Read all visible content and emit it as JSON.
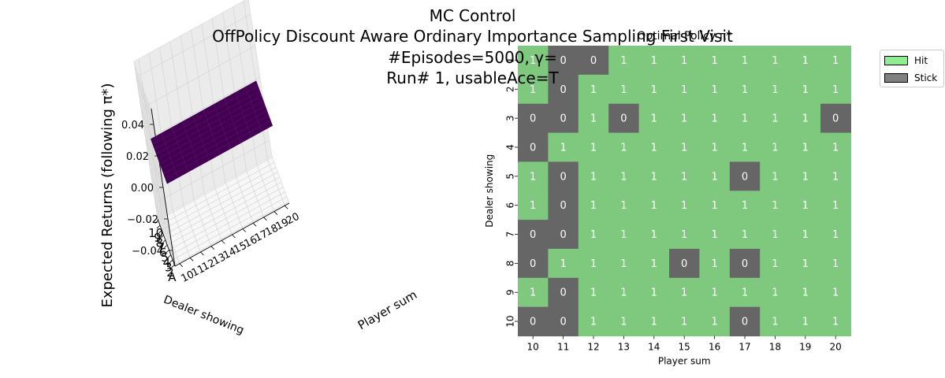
{
  "suptitle": {
    "line1": "MC Control",
    "line2": "OffPolicy Discount Aware Ordinary Importance Sampling First Visit",
    "line3": "#Episodes=5000, γ=",
    "line4": "Run# 1, usableAce=T"
  },
  "colors": {
    "hit": "#7fc97f",
    "stick": "#666666",
    "surface": "#440154",
    "legend_hit": "#90ee90",
    "legend_stick": "#808080"
  },
  "chart_data": [
    {
      "type": "surface3d",
      "title": "",
      "zlabel": "Expected Returns (following π*)",
      "xlabel": "Player sum",
      "ylabel": "Dealer showing",
      "x_ticks": [
        "10",
        "11",
        "12",
        "13",
        "14",
        "15",
        "16",
        "17",
        "18",
        "19",
        "20"
      ],
      "y_ticks": [
        "10",
        "9",
        "8",
        "7",
        "6",
        "5",
        "4",
        "3",
        "2",
        "A"
      ],
      "z_ticks": [
        "−0.04",
        "−0.02",
        "0.00",
        "0.02",
        "0.04"
      ],
      "zlim": [
        -0.05,
        0.05
      ],
      "surface_value": 0.0
    },
    {
      "type": "heatmap",
      "title": "Optimal Policy π*",
      "xlabel": "Player sum",
      "ylabel": "Dealer showing",
      "x": [
        "10",
        "11",
        "12",
        "13",
        "14",
        "15",
        "16",
        "17",
        "18",
        "19",
        "20"
      ],
      "y": [
        "1",
        "2",
        "3",
        "4",
        "5",
        "6",
        "7",
        "8",
        "9",
        "10"
      ],
      "values": [
        [
          1,
          0,
          0,
          1,
          1,
          1,
          1,
          1,
          1,
          1,
          1
        ],
        [
          1,
          0,
          1,
          1,
          1,
          1,
          1,
          1,
          1,
          1,
          1
        ],
        [
          0,
          0,
          1,
          0,
          1,
          1,
          1,
          1,
          1,
          1,
          0
        ],
        [
          0,
          1,
          1,
          1,
          1,
          1,
          1,
          1,
          1,
          1,
          1
        ],
        [
          1,
          0,
          1,
          1,
          1,
          1,
          1,
          0,
          1,
          1,
          1
        ],
        [
          1,
          0,
          1,
          1,
          1,
          1,
          1,
          1,
          1,
          1,
          1
        ],
        [
          0,
          0,
          1,
          1,
          1,
          1,
          1,
          1,
          1,
          1,
          1
        ],
        [
          0,
          1,
          1,
          1,
          1,
          0,
          1,
          0,
          1,
          1,
          1
        ],
        [
          1,
          0,
          1,
          1,
          1,
          1,
          1,
          1,
          1,
          1,
          1
        ],
        [
          0,
          0,
          1,
          1,
          1,
          1,
          1,
          0,
          1,
          1,
          1
        ]
      ],
      "legend": [
        {
          "label": "Hit",
          "value": 1
        },
        {
          "label": "Stick",
          "value": 0
        }
      ]
    }
  ]
}
